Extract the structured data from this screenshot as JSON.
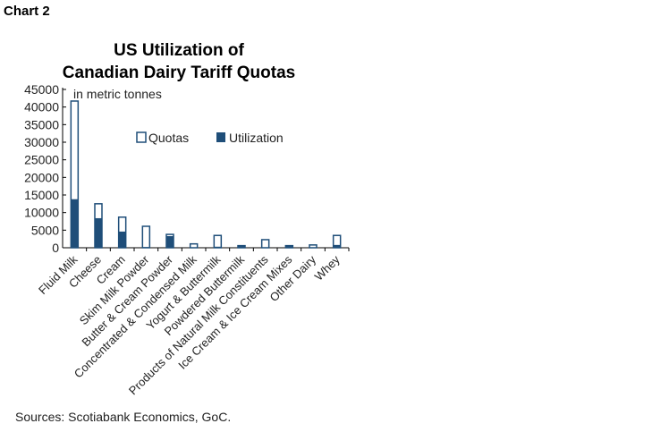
{
  "label": "Chart 2",
  "source": "Sources: Scotiabank Economics, GoC.",
  "chart_data": {
    "type": "bar",
    "title": [
      "US Utilization of",
      "Canadian Dairy Tariff Quotas"
    ],
    "ylabel": "in metric tonnes",
    "ylim": [
      0,
      45000
    ],
    "yticks": [
      0,
      5000,
      10000,
      15000,
      20000,
      25000,
      30000,
      35000,
      40000,
      45000
    ],
    "grid": false,
    "legend": "center",
    "categories": [
      "Fluid Milk",
      "Cheese",
      "Cream",
      "Skim Milk Powder",
      "Butter & Cream Powder",
      "Concentrated & Condensed Milk",
      "Yogurt & Buttermilk",
      "Powdered Buttermilk",
      "Products of Natural Milk Constituents",
      "Ice Cream & Ice Cream Mixes",
      "Other Dairy",
      "Whey"
    ],
    "series": [
      {
        "name": "Quotas",
        "color": "#ffffff",
        "edge": "#1f4e79",
        "values": [
          41700,
          12500,
          8700,
          6100,
          3800,
          1100,
          3500,
          600,
          2300,
          600,
          800,
          3500
        ]
      },
      {
        "name": "Utilization",
        "color": "#1f4e79",
        "values": [
          13800,
          8400,
          4600,
          200,
          3300,
          50,
          300,
          500,
          100,
          500,
          100,
          800
        ]
      }
    ]
  }
}
